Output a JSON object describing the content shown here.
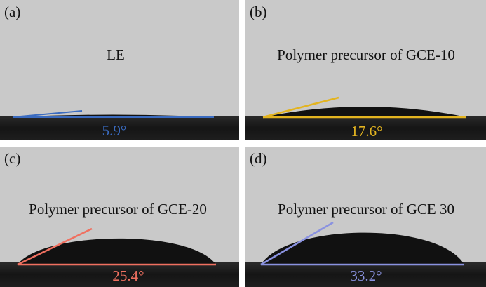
{
  "panels": [
    {
      "label": "(a)",
      "caption": "LE",
      "angle_label": "5.9°"
    },
    {
      "label": "(b)",
      "caption": "Polymer precursor of GCE-10",
      "angle_label": "17.6°"
    },
    {
      "label": "(c)",
      "caption": "Polymer precursor of GCE-20",
      "angle_label": "25.4°"
    },
    {
      "label": "(d)",
      "caption": "Polymer precursor of GCE 30",
      "angle_label": "33.2°"
    }
  ]
}
